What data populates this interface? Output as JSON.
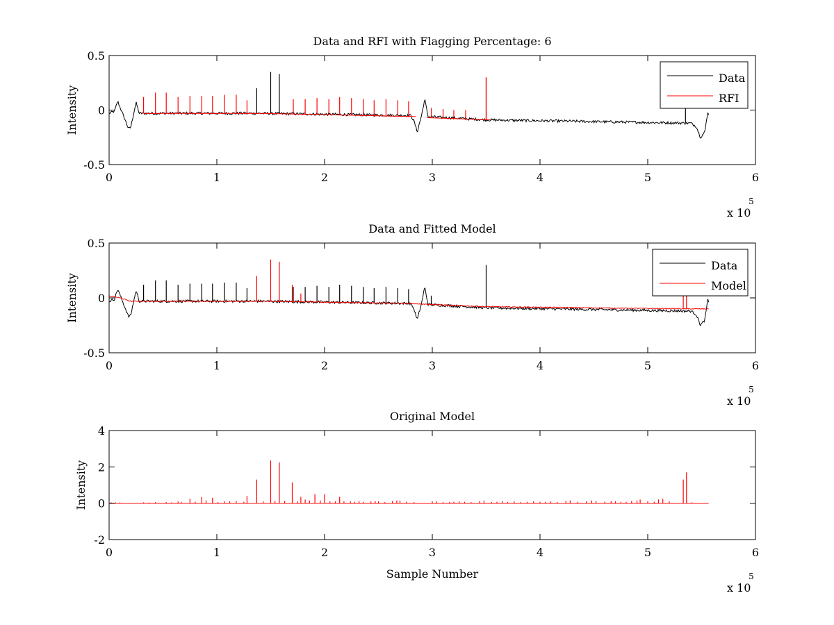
{
  "chart_data": [
    {
      "type": "line",
      "title": "Data and RFI with Flagging Percentage: 6",
      "xlabel": "",
      "ylabel": "Intensity",
      "xlim": [
        0,
        600000
      ],
      "ylim": [
        -0.5,
        0.5
      ],
      "xticks": [
        "0",
        "1",
        "2",
        "3",
        "4",
        "5",
        "6"
      ],
      "yticks": [
        "-0.5",
        "0",
        "0.5"
      ],
      "x_multiplier": {
        "base": "x 10",
        "exp": "5"
      },
      "legend": {
        "placement": "top-right",
        "entries": [
          {
            "label": "Data",
            "color": "#000000"
          },
          {
            "label": "RFI",
            "color": "#ff0000"
          }
        ]
      },
      "grid": false,
      "series": [
        {
          "name": "Data",
          "color": "#000000",
          "x_range": [
            0,
            557000
          ],
          "noise": 0.012,
          "baseline": [
            [
              0,
              -0.03
            ],
            [
              5000,
              -0.01
            ],
            [
              8000,
              0.08
            ],
            [
              12000,
              -0.02
            ],
            [
              18000,
              -0.17
            ],
            [
              20000,
              -0.16
            ],
            [
              25000,
              0.07
            ],
            [
              28000,
              -0.03
            ],
            [
              140000,
              -0.03
            ],
            [
              280000,
              -0.05
            ],
            [
              283000,
              -0.1
            ],
            [
              286000,
              -0.2
            ],
            [
              290000,
              -0.05
            ],
            [
              293000,
              0.1
            ],
            [
              296000,
              -0.06
            ],
            [
              350000,
              -0.09
            ],
            [
              540000,
              -0.12
            ],
            [
              545000,
              -0.15
            ],
            [
              549000,
              -0.25
            ],
            [
              553000,
              -0.2
            ],
            [
              556000,
              0.0
            ],
            [
              557000,
              -0.1
            ]
          ],
          "spikes": [
            [
              137000,
              0.2
            ],
            [
              150000,
              0.35
            ],
            [
              158000,
              0.33
            ],
            [
              350000,
              0.3
            ],
            [
              535000,
              0.05
            ]
          ]
        },
        {
          "name": "RFI",
          "color": "#ff0000",
          "segments": [
            [
              32000,
              285000
            ],
            [
              295000,
              355000
            ]
          ],
          "baseline": [
            [
              25000,
              -0.03
            ],
            [
              140000,
              -0.03
            ],
            [
              285000,
              -0.06
            ],
            [
              295000,
              -0.07
            ],
            [
              355000,
              -0.09
            ]
          ],
          "spikes": [
            [
              32000,
              0.12
            ],
            [
              43000,
              0.16
            ],
            [
              53000,
              0.16
            ],
            [
              64000,
              0.12
            ],
            [
              75000,
              0.13
            ],
            [
              86000,
              0.13
            ],
            [
              96000,
              0.13
            ],
            [
              107000,
              0.14
            ],
            [
              118000,
              0.14
            ],
            [
              128000,
              0.09
            ],
            [
              171000,
              0.1
            ],
            [
              182000,
              0.1
            ],
            [
              193000,
              0.11
            ],
            [
              204000,
              0.1
            ],
            [
              214000,
              0.12
            ],
            [
              225000,
              0.11
            ],
            [
              236000,
              0.1
            ],
            [
              246000,
              0.09
            ],
            [
              257000,
              0.1
            ],
            [
              268000,
              0.09
            ],
            [
              278000,
              0.08
            ],
            [
              299000,
              0.02
            ],
            [
              310000,
              0.01
            ],
            [
              320000,
              0.0
            ],
            [
              331000,
              0.0
            ],
            [
              350000,
              0.3
            ]
          ]
        }
      ]
    },
    {
      "type": "line",
      "title": "Data and Fitted Model",
      "xlabel": "",
      "ylabel": "Intensity",
      "xlim": [
        0,
        600000
      ],
      "ylim": [
        -0.5,
        0.5
      ],
      "xticks": [
        "0",
        "1",
        "2",
        "3",
        "4",
        "5",
        "6"
      ],
      "yticks": [
        "-0.5",
        "0",
        "0.5"
      ],
      "x_multiplier": {
        "base": "x 10",
        "exp": "5"
      },
      "legend": {
        "placement": "top-right",
        "entries": [
          {
            "label": "Data",
            "color": "#000000"
          },
          {
            "label": "Model",
            "color": "#ff0000"
          }
        ]
      },
      "grid": false,
      "series": [
        {
          "name": "Data",
          "color": "#000000",
          "x_range": [
            0,
            557000
          ],
          "noise": 0.012,
          "baseline": [
            [
              0,
              -0.03
            ],
            [
              5000,
              -0.01
            ],
            [
              8000,
              0.08
            ],
            [
              12000,
              -0.02
            ],
            [
              18000,
              -0.17
            ],
            [
              20000,
              -0.16
            ],
            [
              25000,
              0.07
            ],
            [
              28000,
              -0.03
            ],
            [
              140000,
              -0.03
            ],
            [
              280000,
              -0.05
            ],
            [
              283000,
              -0.1
            ],
            [
              286000,
              -0.2
            ],
            [
              290000,
              -0.05
            ],
            [
              293000,
              0.1
            ],
            [
              296000,
              -0.06
            ],
            [
              350000,
              -0.09
            ],
            [
              540000,
              -0.12
            ],
            [
              545000,
              -0.15
            ],
            [
              549000,
              -0.25
            ],
            [
              553000,
              -0.2
            ],
            [
              556000,
              0.0
            ],
            [
              557000,
              -0.1
            ]
          ],
          "spikes": [
            [
              32000,
              0.12
            ],
            [
              43000,
              0.16
            ],
            [
              53000,
              0.16
            ],
            [
              64000,
              0.12
            ],
            [
              75000,
              0.13
            ],
            [
              86000,
              0.13
            ],
            [
              96000,
              0.13
            ],
            [
              107000,
              0.14
            ],
            [
              118000,
              0.14
            ],
            [
              128000,
              0.09
            ],
            [
              171000,
              0.1
            ],
            [
              182000,
              0.1
            ],
            [
              193000,
              0.11
            ],
            [
              204000,
              0.1
            ],
            [
              214000,
              0.12
            ],
            [
              225000,
              0.11
            ],
            [
              236000,
              0.1
            ],
            [
              246000,
              0.09
            ],
            [
              257000,
              0.1
            ],
            [
              268000,
              0.09
            ],
            [
              278000,
              0.08
            ],
            [
              299000,
              0.02
            ],
            [
              350000,
              0.3
            ]
          ]
        },
        {
          "name": "Model",
          "color": "#ff0000",
          "x_range": [
            0,
            557000
          ],
          "noise": 0.004,
          "baseline": [
            [
              0,
              0.02
            ],
            [
              10000,
              0.0
            ],
            [
              20000,
              -0.03
            ],
            [
              140000,
              -0.03
            ],
            [
              280000,
              -0.05
            ],
            [
              300000,
              -0.06
            ],
            [
              350000,
              -0.08
            ],
            [
              540000,
              -0.1
            ],
            [
              557000,
              -0.1
            ]
          ],
          "spikes": [
            [
              137000,
              0.2
            ],
            [
              150000,
              0.35
            ],
            [
              158000,
              0.33
            ],
            [
              170000,
              0.12
            ],
            [
              178000,
              0.04
            ],
            [
              533000,
              0.1
            ],
            [
              536000,
              0.13
            ]
          ]
        }
      ]
    },
    {
      "type": "line",
      "title": "Original Model",
      "xlabel": "Sample Number",
      "ylabel": "Intensity",
      "xlim": [
        0,
        600000
      ],
      "ylim": [
        -2,
        4
      ],
      "xticks": [
        "0",
        "1",
        "2",
        "3",
        "4",
        "5",
        "6"
      ],
      "yticks": [
        "-2",
        "0",
        "2",
        "4"
      ],
      "x_multiplier": {
        "base": "x 10",
        "exp": "5"
      },
      "legend": null,
      "grid": false,
      "series": [
        {
          "color": "#ff0000",
          "x_range": [
            0,
            557000
          ],
          "noise": 0,
          "baseline": [
            [
              0,
              0
            ],
            [
              557000,
              0
            ]
          ],
          "spikes": [
            [
              2000,
              0.05
            ],
            [
              6000,
              0.05
            ],
            [
              10000,
              0.04
            ],
            [
              32000,
              0.05
            ],
            [
              37000,
              0.04
            ],
            [
              43000,
              0.06
            ],
            [
              53000,
              0.06
            ],
            [
              58000,
              0.05
            ],
            [
              64000,
              0.1
            ],
            [
              67000,
              0.07
            ],
            [
              75000,
              0.25
            ],
            [
              80000,
              0.08
            ],
            [
              86000,
              0.35
            ],
            [
              90000,
              0.15
            ],
            [
              96000,
              0.3
            ],
            [
              101000,
              0.07
            ],
            [
              107000,
              0.1
            ],
            [
              112000,
              0.1
            ],
            [
              118000,
              0.12
            ],
            [
              125000,
              0.08
            ],
            [
              128000,
              0.4
            ],
            [
              137000,
              1.3
            ],
            [
              143000,
              0.1
            ],
            [
              150000,
              2.35
            ],
            [
              154000,
              0.12
            ],
            [
              158000,
              2.25
            ],
            [
              163000,
              0.12
            ],
            [
              170000,
              1.15
            ],
            [
              175000,
              0.1
            ],
            [
              178000,
              0.35
            ],
            [
              182000,
              0.2
            ],
            [
              186000,
              0.15
            ],
            [
              191000,
              0.5
            ],
            [
              196000,
              0.15
            ],
            [
              200000,
              0.5
            ],
            [
              205000,
              0.1
            ],
            [
              210000,
              0.1
            ],
            [
              214000,
              0.35
            ],
            [
              218000,
              0.1
            ],
            [
              224000,
              0.1
            ],
            [
              228000,
              0.08
            ],
            [
              232000,
              0.12
            ],
            [
              236000,
              0.08
            ],
            [
              243000,
              0.1
            ],
            [
              247000,
              0.12
            ],
            [
              250000,
              0.1
            ],
            [
              256000,
              0.06
            ],
            [
              263000,
              0.12
            ],
            [
              267000,
              0.15
            ],
            [
              270000,
              0.15
            ],
            [
              276000,
              0.08
            ],
            [
              283000,
              0.06
            ],
            [
              300000,
              0.1
            ],
            [
              304000,
              0.1
            ],
            [
              310000,
              0.06
            ],
            [
              316000,
              0.07
            ],
            [
              320000,
              0.08
            ],
            [
              325000,
              0.1
            ],
            [
              330000,
              0.08
            ],
            [
              336000,
              0.06
            ],
            [
              344000,
              0.12
            ],
            [
              348000,
              0.15
            ],
            [
              355000,
              0.07
            ],
            [
              360000,
              0.08
            ],
            [
              365000,
              0.1
            ],
            [
              370000,
              0.07
            ],
            [
              376000,
              0.1
            ],
            [
              382000,
              0.06
            ],
            [
              388000,
              0.08
            ],
            [
              394000,
              0.1
            ],
            [
              400000,
              0.08
            ],
            [
              405000,
              0.07
            ],
            [
              410000,
              0.1
            ],
            [
              416000,
              0.07
            ],
            [
              424000,
              0.12
            ],
            [
              428000,
              0.15
            ],
            [
              435000,
              0.08
            ],
            [
              443000,
              0.1
            ],
            [
              448000,
              0.15
            ],
            [
              452000,
              0.12
            ],
            [
              460000,
              0.08
            ],
            [
              466000,
              0.12
            ],
            [
              470000,
              0.1
            ],
            [
              475000,
              0.08
            ],
            [
              480000,
              0.07
            ],
            [
              485000,
              0.12
            ],
            [
              490000,
              0.15
            ],
            [
              493000,
              0.2
            ],
            [
              500000,
              0.1
            ],
            [
              506000,
              0.08
            ],
            [
              510000,
              0.2
            ],
            [
              514000,
              0.25
            ],
            [
              520000,
              0.1
            ],
            [
              533000,
              1.3
            ],
            [
              536000,
              1.7
            ],
            [
              541000,
              0.05
            ]
          ]
        }
      ]
    }
  ]
}
